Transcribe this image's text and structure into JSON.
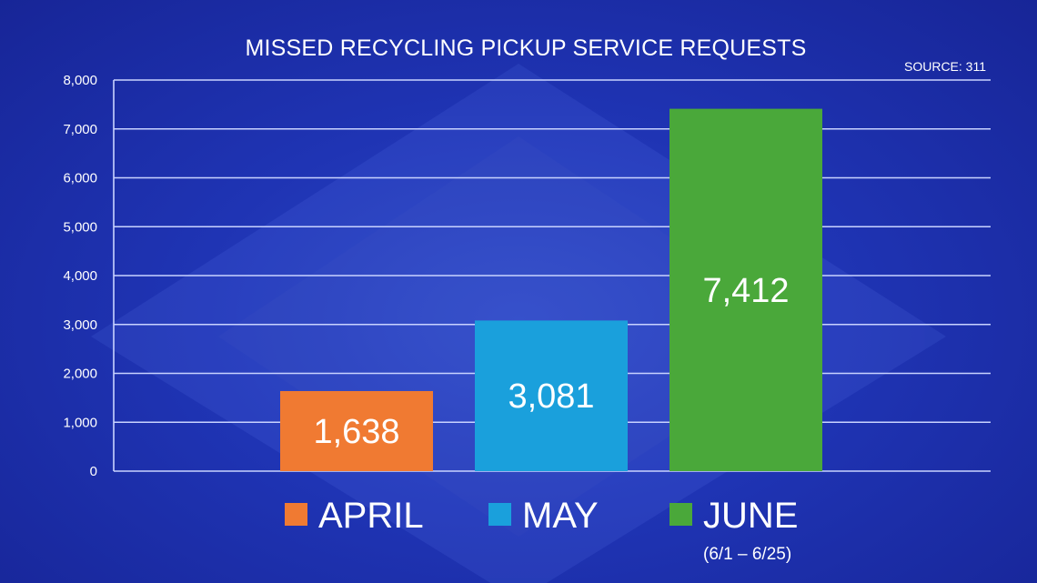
{
  "chart_data": {
    "type": "bar",
    "title": "MISSED RECYCLING PICKUP SERVICE REQUESTS",
    "source": "SOURCE: 311",
    "categories": [
      "APRIL",
      "MAY",
      "JUNE"
    ],
    "values": [
      1638,
      3081,
      7412
    ],
    "value_labels": [
      "1,638",
      "3,081",
      "7,412"
    ],
    "colors": [
      "#f07a32",
      "#1aa0dc",
      "#4aa83a"
    ],
    "legend_notes": [
      "",
      "",
      "(6/1 – 6/25)"
    ],
    "ylim": [
      0,
      8000
    ],
    "yticks": [
      0,
      1000,
      2000,
      3000,
      4000,
      5000,
      6000,
      7000,
      8000
    ],
    "ytick_labels": [
      "0",
      "1,000",
      "2,000",
      "3,000",
      "4,000",
      "5,000",
      "6,000",
      "7,000",
      "8,000"
    ],
    "grid": true,
    "legend_position": "bottom"
  }
}
